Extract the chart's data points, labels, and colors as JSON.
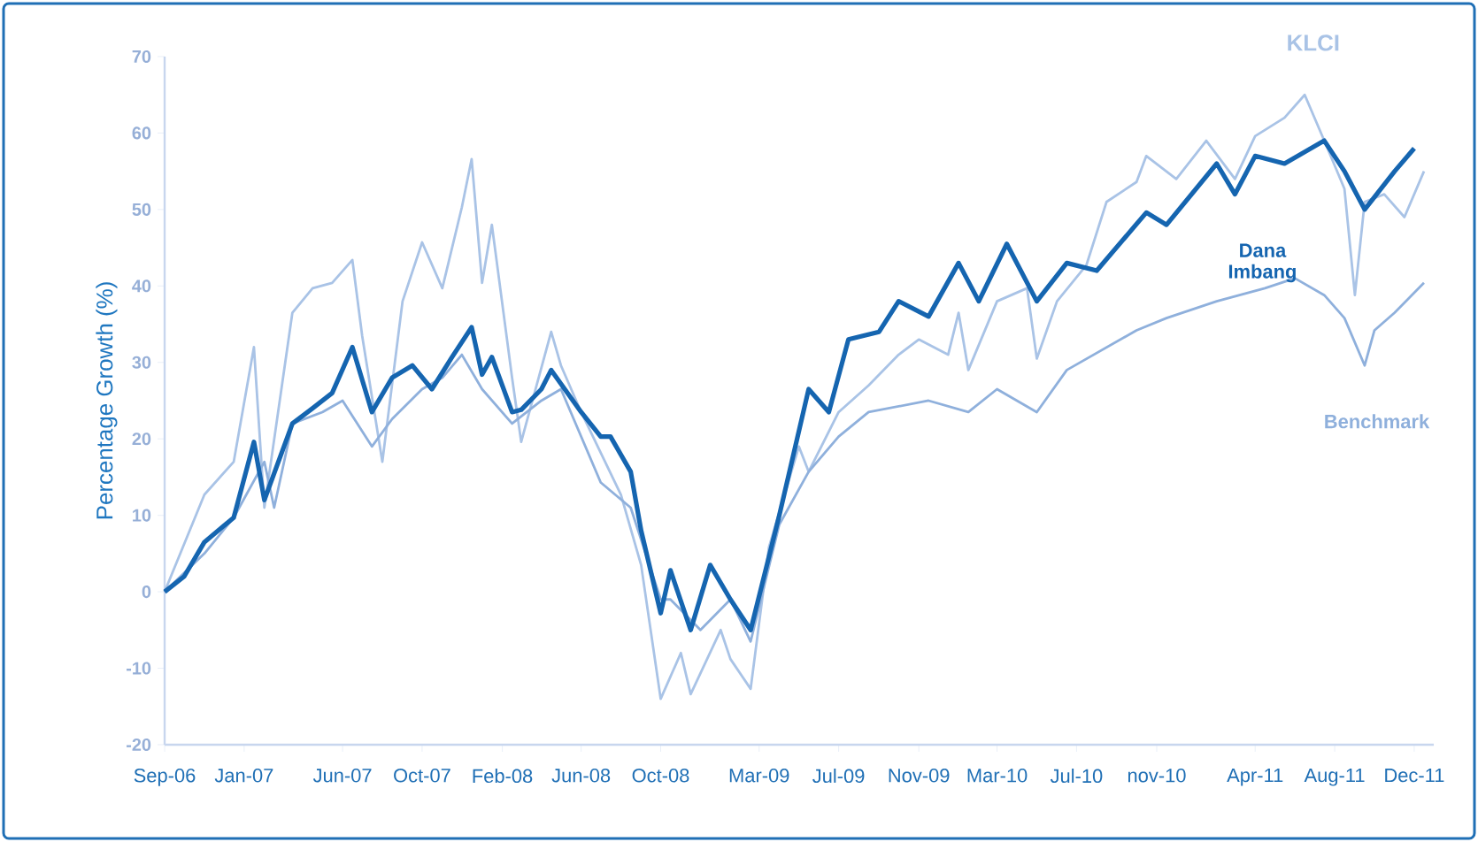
{
  "chart_data": {
    "type": "line",
    "ylabel": "Percentage Growth (%)",
    "ylim": [
      -20,
      70
    ],
    "yticks": [
      -20,
      -10,
      0,
      10,
      20,
      30,
      40,
      50,
      60,
      70
    ],
    "xlim": [
      "2006-09-01",
      "2011-12-31"
    ],
    "xticks": [
      {
        "value": "2006-09-01",
        "label": "Sep-06"
      },
      {
        "value": "2007-01-01",
        "label": "Jan-07"
      },
      {
        "value": "2007-06-01",
        "label": "Jun-07"
      },
      {
        "value": "2007-10-01",
        "label": "Oct-07"
      },
      {
        "value": "2008-02-01",
        "label": "Feb-08"
      },
      {
        "value": "2008-06-01",
        "label": "Jun-08"
      },
      {
        "value": "2008-10-01",
        "label": "Oct-08"
      },
      {
        "value": "2009-03-01",
        "label": "Mar-09"
      },
      {
        "value": "2009-07-01",
        "label": "Jul-09"
      },
      {
        "value": "2009-11-01",
        "label": "Nov-09"
      },
      {
        "value": "2010-03-01",
        "label": "Mar-10"
      },
      {
        "value": "2010-07-01",
        "label": "Jul-10"
      },
      {
        "value": "2010-11-01",
        "label": "nov-10"
      },
      {
        "value": "2011-04-01",
        "label": "Apr-11"
      },
      {
        "value": "2011-08-01",
        "label": "Aug-11"
      },
      {
        "value": "2011-12-01",
        "label": "Dec-11"
      }
    ],
    "grid": false,
    "legend": false,
    "marker": "none",
    "line_style": "solid",
    "series": [
      {
        "name": "KLCI",
        "color": "#a9c3e6",
        "x": [
          "2006-09-01",
          "2006-11-01",
          "2006-12-16",
          "2007-01-16",
          "2007-02-01",
          "2007-03-16",
          "2007-04-16",
          "2007-05-16",
          "2007-06-16",
          "2007-07-01",
          "2007-08-01",
          "2007-09-01",
          "2007-10-01",
          "2007-11-01",
          "2007-12-01",
          "2007-12-16",
          "2008-01-01",
          "2008-01-16",
          "2008-02-16",
          "2008-03-01",
          "2008-04-16",
          "2008-05-01",
          "2008-06-01",
          "2008-08-01",
          "2008-09-01",
          "2008-10-01",
          "2008-11-01",
          "2008-11-16",
          "2009-01-01",
          "2009-01-16",
          "2009-02-16",
          "2009-03-16",
          "2009-05-01",
          "2009-05-16",
          "2009-07-01",
          "2009-08-16",
          "2009-10-01",
          "2009-11-01",
          "2009-12-16",
          "2010-01-01",
          "2010-01-16",
          "2010-03-01",
          "2010-04-16",
          "2010-05-01",
          "2010-06-01",
          "2010-07-16",
          "2010-08-16",
          "2010-10-01",
          "2010-10-16",
          "2010-12-01",
          "2011-01-16",
          "2011-03-01",
          "2011-04-01",
          "2011-05-16",
          "2011-06-16",
          "2011-07-16",
          "2011-08-16",
          "2011-09-01",
          "2011-09-16",
          "2011-10-16",
          "2011-11-16",
          "2011-12-16"
        ],
        "values": [
          0,
          12.7,
          17,
          32,
          11,
          36.5,
          39.7,
          40.4,
          43.4,
          33.5,
          17,
          38,
          45.7,
          39.7,
          50.3,
          56.6,
          40.4,
          48,
          28,
          19.6,
          34,
          29.6,
          23.5,
          12.7,
          3.5,
          -14,
          -8,
          -13.4,
          -5,
          -8.8,
          -12.7,
          5.8,
          19,
          15.7,
          23.5,
          27,
          31,
          33,
          31,
          36.5,
          29,
          38,
          39.7,
          30.5,
          38,
          42.7,
          51,
          53.6,
          57,
          54,
          59,
          54,
          59.6,
          62,
          65,
          59,
          52.7,
          38.8,
          51,
          52,
          49,
          55
        ]
      },
      {
        "name": "Benchmark",
        "color": "#8fb0dc",
        "x": [
          "2006-09-01",
          "2006-11-01",
          "2006-12-16",
          "2007-02-01",
          "2007-02-16",
          "2007-03-16",
          "2007-05-01",
          "2007-06-01",
          "2007-07-16",
          "2007-08-16",
          "2007-10-01",
          "2007-11-01",
          "2007-12-01",
          "2008-01-01",
          "2008-02-16",
          "2008-04-01",
          "2008-05-01",
          "2008-07-01",
          "2008-08-16",
          "2008-10-01",
          "2008-10-16",
          "2008-12-01",
          "2009-01-16",
          "2009-02-16",
          "2009-04-01",
          "2009-05-16",
          "2009-07-01",
          "2009-08-16",
          "2009-11-16",
          "2010-01-16",
          "2010-03-01",
          "2010-05-01",
          "2010-06-16",
          "2010-10-01",
          "2010-11-16",
          "2011-02-01",
          "2011-04-16",
          "2011-06-01",
          "2011-07-16",
          "2011-08-16",
          "2011-09-16",
          "2011-10-01",
          "2011-11-01",
          "2011-12-16"
        ],
        "values": [
          0,
          5,
          9.7,
          17,
          11,
          22,
          23.5,
          25,
          19,
          22.6,
          26.5,
          28,
          31,
          26.5,
          22,
          25,
          26.5,
          14.3,
          11,
          -1,
          -1,
          -5,
          -1,
          -6.5,
          8.8,
          15.7,
          20.3,
          23.5,
          25,
          23.5,
          26.5,
          23.5,
          29,
          34.2,
          35.8,
          38,
          39.7,
          41,
          38.8,
          35.8,
          29.6,
          34.2,
          36.5,
          40.4
        ]
      },
      {
        "name": "Dana Imbang",
        "color": "#1565b0",
        "x": [
          "2006-09-01",
          "2006-10-01",
          "2006-11-01",
          "2006-12-16",
          "2007-01-16",
          "2007-02-01",
          "2007-03-16",
          "2007-04-16",
          "2007-05-16",
          "2007-06-16",
          "2007-07-16",
          "2007-08-16",
          "2007-09-16",
          "2007-10-16",
          "2007-11-16",
          "2007-12-16",
          "2008-01-01",
          "2008-01-16",
          "2008-02-16",
          "2008-03-01",
          "2008-04-01",
          "2008-04-16",
          "2008-06-01",
          "2008-07-01",
          "2008-07-16",
          "2008-08-16",
          "2008-09-01",
          "2008-10-01",
          "2008-10-16",
          "2008-11-16",
          "2008-12-16",
          "2009-01-16",
          "2009-02-16",
          "2009-04-01",
          "2009-05-16",
          "2009-06-16",
          "2009-07-16",
          "2009-09-01",
          "2009-10-01",
          "2009-11-16",
          "2010-01-01",
          "2010-02-01",
          "2010-03-16",
          "2010-05-01",
          "2010-06-16",
          "2010-08-01",
          "2010-10-16",
          "2010-11-16",
          "2011-02-01",
          "2011-03-01",
          "2011-04-01",
          "2011-05-16",
          "2011-07-16",
          "2011-08-16",
          "2011-09-16",
          "2011-11-01",
          "2011-12-01"
        ],
        "values": [
          0,
          2,
          6.5,
          9.7,
          19.6,
          12,
          22,
          24,
          26,
          32,
          23.5,
          28,
          29.6,
          26.5,
          30.7,
          34.6,
          28.4,
          30.7,
          23.5,
          23.8,
          26.5,
          29,
          23.5,
          20.3,
          20.3,
          15.7,
          8,
          -2.8,
          2.8,
          -5,
          3.5,
          -1,
          -5,
          10,
          26.5,
          23.5,
          33,
          34,
          38,
          36,
          43,
          38,
          45.5,
          38,
          43,
          42,
          49.6,
          48,
          56,
          52,
          57,
          56,
          59,
          55,
          50,
          55,
          58
        ]
      }
    ]
  }
}
